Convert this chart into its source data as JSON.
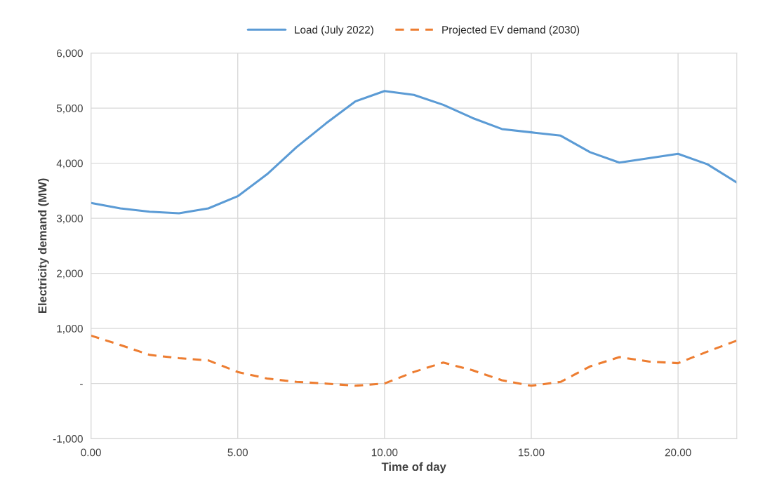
{
  "chart_data": {
    "type": "line",
    "xlabel": "Time of day",
    "ylabel": "Electricity demand (MW)",
    "x": [
      0,
      1,
      2,
      3,
      4,
      5,
      6,
      7,
      8,
      9,
      10,
      11,
      12,
      13,
      14,
      15,
      16,
      17,
      18,
      19,
      20,
      21,
      22
    ],
    "series": [
      {
        "name": "Load (July 2022)",
        "color": "#5b9bd5",
        "line_style": "solid",
        "values": [
          3280,
          3180,
          3120,
          3090,
          3180,
          3400,
          3800,
          4290,
          4720,
          5120,
          5310,
          5240,
          5060,
          4820,
          4620,
          4560,
          4500,
          4200,
          4010,
          4090,
          4170,
          3980,
          3650
        ]
      },
      {
        "name": "Projected EV demand (2030)",
        "color": "#ed7d31",
        "line_style": "dashed",
        "values": [
          870,
          700,
          520,
          460,
          420,
          210,
          90,
          30,
          0,
          -40,
          0,
          210,
          380,
          240,
          60,
          -40,
          30,
          310,
          480,
          400,
          370,
          580,
          780
        ]
      }
    ],
    "xlim": [
      0,
      22
    ],
    "xticks": [
      {
        "value": 0,
        "label": "0.00"
      },
      {
        "value": 5,
        "label": "5.00"
      },
      {
        "value": 10,
        "label": "10.00"
      },
      {
        "value": 15,
        "label": "15.00"
      },
      {
        "value": 20,
        "label": "20.00"
      }
    ],
    "ylim": [
      -1000,
      6000
    ],
    "yticks": [
      {
        "value": -1000,
        "label": "-1,000"
      },
      {
        "value": 0,
        "label": "-"
      },
      {
        "value": 1000,
        "label": "1,000"
      },
      {
        "value": 2000,
        "label": "2,000"
      },
      {
        "value": 3000,
        "label": "3,000"
      },
      {
        "value": 4000,
        "label": "4,000"
      },
      {
        "value": 5000,
        "label": "5,000"
      },
      {
        "value": 6000,
        "label": "6,000"
      }
    ],
    "grid": true,
    "legend": "top",
    "marker": "none"
  }
}
